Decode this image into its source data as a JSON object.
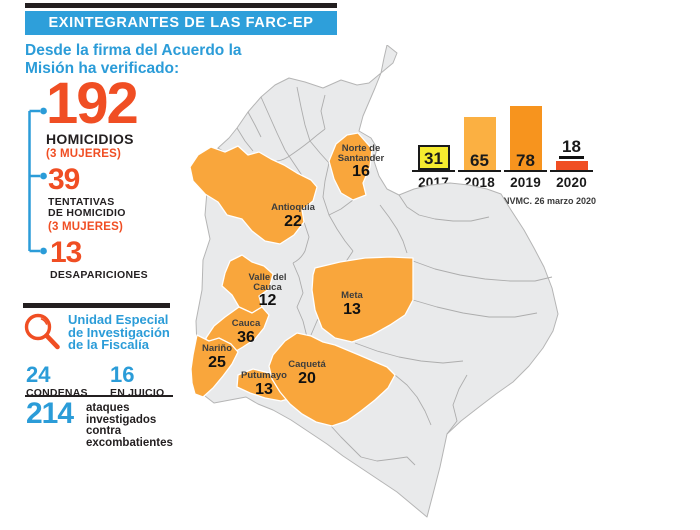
{
  "colors": {
    "banner_blue": "#2E9FDA",
    "blue": "#2B9CD8",
    "red_orange": "#F04E23",
    "black": "#231F20",
    "map_highlight": "#F9A63C",
    "map_gray": "#E9EAEB"
  },
  "header": {
    "title": "EXINTEGRANTES DE LAS FARC-EP",
    "subtitle": "Desde la firma del Acuerdo la\nMisión ha verificado:"
  },
  "verified_stats": [
    {
      "value": "192",
      "label": "HOMICIDIOS",
      "note": "(3 MUJERES)"
    },
    {
      "value": "39",
      "label": "TENTATIVAS\nDE HOMICIDIO",
      "note": "(3 MUJERES)"
    },
    {
      "value": "13",
      "label": "DESAPARICIONES",
      "note": ""
    }
  ],
  "chart_data": {
    "type": "bar",
    "categories": [
      "2017",
      "2018",
      "2019",
      "2020"
    ],
    "values": [
      31,
      65,
      78,
      18
    ],
    "bar_colors": [
      "#F6EB2F",
      "#FBB042",
      "#F7941E",
      "#F04E23"
    ],
    "title": "",
    "xlabel": "",
    "ylabel": "",
    "ylim": [
      0,
      85
    ],
    "grid": false,
    "legend": false,
    "note": "*UNVMC. 26 marzo 2020"
  },
  "map": {
    "country": "Colombia",
    "departments": [
      {
        "name": "Norte de Santander",
        "value": 16
      },
      {
        "name": "Antioquia",
        "value": 22
      },
      {
        "name": "Valle del Cauca",
        "value": 12
      },
      {
        "name": "Cauca",
        "value": 36
      },
      {
        "name": "Nariño",
        "value": 25
      },
      {
        "name": "Putumayo",
        "value": 13
      },
      {
        "name": "Caquetá",
        "value": 20
      },
      {
        "name": "Meta",
        "value": 13
      }
    ]
  },
  "fiscalia": {
    "icon": "magnifier-icon",
    "title": "Unidad Especial\nde Investigación\nde la Fiscalía",
    "stats": [
      {
        "value": "24",
        "label": "CONDENAS"
      },
      {
        "value": "16",
        "label": "EN JUICIO"
      }
    ],
    "attacks": {
      "value": "214",
      "label": "ataques\ninvestigados\ncontra\nexcombatientes"
    }
  }
}
